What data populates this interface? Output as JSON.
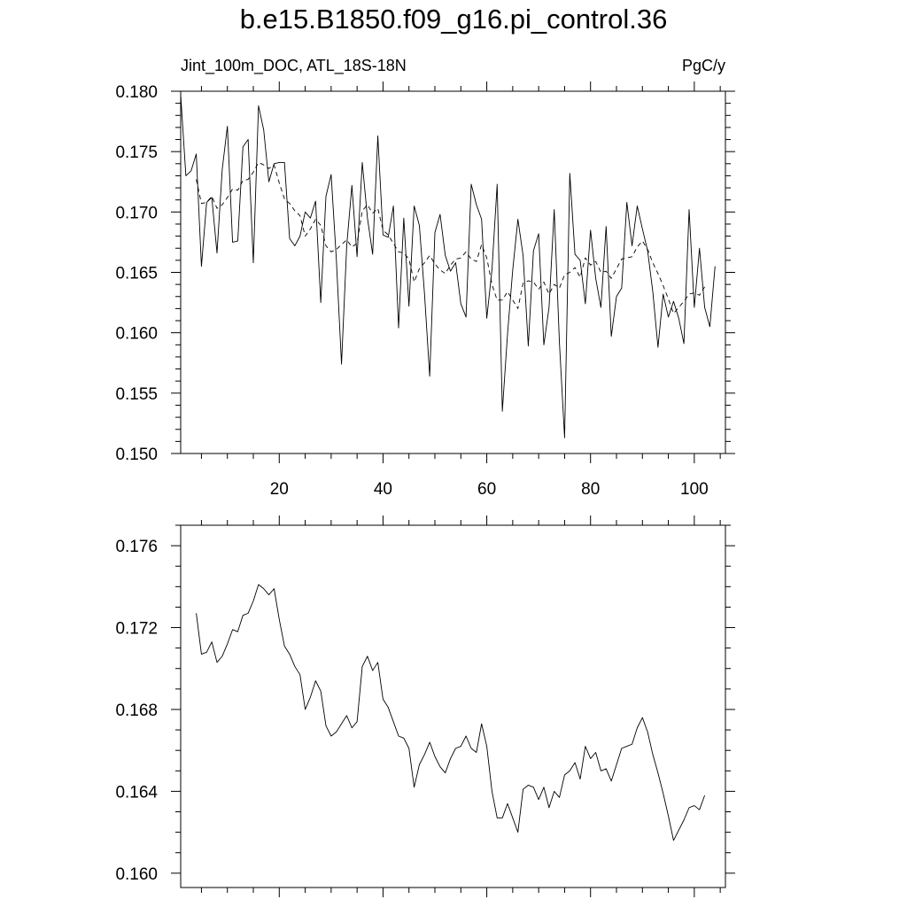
{
  "title": "b.e15.B1850.f09_g16.pi_control.36",
  "subtitle_left": "Jint_100m_DOC, ATL_18S-18N",
  "subtitle_right": "PgC/y",
  "chart_data": [
    {
      "type": "line",
      "title": "b.e15.B1850.f09_g16.pi_control.36",
      "xlabel": "",
      "ylabel": "",
      "xlim": [
        1,
        106
      ],
      "ylim": [
        0.15,
        0.18
      ],
      "x_ticks": [
        20,
        40,
        60,
        80,
        100
      ],
      "y_ticks": [
        0.15,
        0.155,
        0.16,
        0.165,
        0.17,
        0.175,
        0.18
      ],
      "y_tick_labels": [
        "0.150",
        "0.155",
        "0.160",
        "0.165",
        "0.170",
        "0.175",
        "0.180"
      ],
      "x_tick_labels": [
        "20",
        "40",
        "60",
        "80",
        "100"
      ],
      "grid": false,
      "series": [
        {
          "style": "solid",
          "x_start": 1,
          "values": [
            0.1797,
            0.173,
            0.1734,
            0.1748,
            0.1655,
            0.1708,
            0.1712,
            0.1666,
            0.1735,
            0.1771,
            0.1675,
            0.1676,
            0.1754,
            0.176,
            0.1658,
            0.1788,
            0.1768,
            0.1725,
            0.174,
            0.1741,
            0.1741,
            0.1678,
            0.1672,
            0.168,
            0.17,
            0.1695,
            0.1709,
            0.1625,
            0.1713,
            0.1731,
            0.1661,
            0.1574,
            0.1672,
            0.1722,
            0.1663,
            0.1741,
            0.1695,
            0.1665,
            0.1763,
            0.1681,
            0.1679,
            0.1705,
            0.1604,
            0.1695,
            0.1622,
            0.1705,
            0.1689,
            0.1632,
            0.1564,
            0.1683,
            0.1698,
            0.1664,
            0.1651,
            0.1658,
            0.1624,
            0.1613,
            0.1723,
            0.1706,
            0.1694,
            0.1612,
            0.1652,
            0.1723,
            0.1535,
            0.1599,
            0.1652,
            0.1694,
            0.1664,
            0.1589,
            0.1668,
            0.1682,
            0.159,
            0.1621,
            0.1702,
            0.1592,
            0.1513,
            0.1732,
            0.1665,
            0.166,
            0.1624,
            0.1685,
            0.1645,
            0.1621,
            0.1688,
            0.1597,
            0.163,
            0.1637,
            0.1708,
            0.1672,
            0.1705,
            0.1686,
            0.1668,
            0.1634,
            0.1588,
            0.1632,
            0.1613,
            0.1626,
            0.1612,
            0.1591,
            0.1702,
            0.1621,
            0.167,
            0.1621,
            0.1605,
            0.1655
          ]
        },
        {
          "style": "dashed",
          "x_start": 4,
          "values": [
            0.1727,
            0.1707,
            0.1708,
            0.1713,
            0.1703,
            0.1706,
            0.1712,
            0.1719,
            0.1718,
            0.1726,
            0.1727,
            0.1733,
            0.1741,
            0.1739,
            0.1736,
            0.1739,
            0.1724,
            0.1711,
            0.1707,
            0.1701,
            0.1697,
            0.168,
            0.1686,
            0.1694,
            0.1689,
            0.1672,
            0.1667,
            0.1669,
            0.1673,
            0.1677,
            0.1671,
            0.1674,
            0.1701,
            0.1706,
            0.1699,
            0.1703,
            0.1685,
            0.1681,
            0.1674,
            0.1667,
            0.1666,
            0.1661,
            0.1642,
            0.1653,
            0.1658,
            0.1664,
            0.1657,
            0.1652,
            0.1649,
            0.1656,
            0.1661,
            0.1662,
            0.1667,
            0.1661,
            0.1659,
            0.1673,
            0.1662,
            0.164,
            0.1627,
            0.1627,
            0.1634,
            0.1627,
            0.162,
            0.1641,
            0.1643,
            0.1642,
            0.1636,
            0.1642,
            0.1632,
            0.164,
            0.1637,
            0.1648,
            0.165,
            0.1654,
            0.1646,
            0.1662,
            0.1656,
            0.1659,
            0.165,
            0.1651,
            0.1645,
            0.1653,
            0.1661,
            0.1662,
            0.1663,
            0.1671,
            0.1676,
            0.1669,
            0.1658,
            0.1649,
            0.1639,
            0.1628,
            0.1616,
            0.1621,
            0.1626,
            0.1632,
            0.1633,
            0.1631,
            0.1638
          ]
        }
      ]
    },
    {
      "type": "line",
      "xlabel": "",
      "ylabel": "",
      "xlim": [
        1,
        106
      ],
      "ylim": [
        0.1593,
        0.177
      ],
      "y_ticks": [
        0.16,
        0.164,
        0.168,
        0.172,
        0.176
      ],
      "y_tick_labels": [
        "0.160",
        "0.164",
        "0.168",
        "0.172",
        "0.176"
      ],
      "x_ticks": [
        20,
        40,
        60,
        80,
        100
      ],
      "grid": false,
      "series": [
        {
          "style": "solid",
          "x_start": 4,
          "values": [
            0.1727,
            0.1707,
            0.1708,
            0.1713,
            0.1703,
            0.1706,
            0.1712,
            0.1719,
            0.1718,
            0.1726,
            0.1727,
            0.1733,
            0.1741,
            0.1739,
            0.1736,
            0.1739,
            0.1724,
            0.1711,
            0.1707,
            0.1701,
            0.1697,
            0.168,
            0.1686,
            0.1694,
            0.1689,
            0.1672,
            0.1667,
            0.1669,
            0.1673,
            0.1677,
            0.1671,
            0.1674,
            0.1701,
            0.1706,
            0.1699,
            0.1703,
            0.1685,
            0.1681,
            0.1674,
            0.1667,
            0.1666,
            0.1661,
            0.1642,
            0.1653,
            0.1658,
            0.1664,
            0.1657,
            0.1652,
            0.1649,
            0.1656,
            0.1661,
            0.1662,
            0.1667,
            0.1661,
            0.1659,
            0.1673,
            0.1662,
            0.164,
            0.1627,
            0.1627,
            0.1634,
            0.1627,
            0.162,
            0.1641,
            0.1643,
            0.1642,
            0.1636,
            0.1642,
            0.1632,
            0.164,
            0.1637,
            0.1648,
            0.165,
            0.1654,
            0.1646,
            0.1662,
            0.1656,
            0.1659,
            0.165,
            0.1651,
            0.1645,
            0.1653,
            0.1661,
            0.1662,
            0.1663,
            0.1671,
            0.1676,
            0.1669,
            0.1658,
            0.1649,
            0.1639,
            0.1628,
            0.1616,
            0.1621,
            0.1626,
            0.1632,
            0.1633,
            0.1631,
            0.1638
          ]
        }
      ]
    }
  ]
}
